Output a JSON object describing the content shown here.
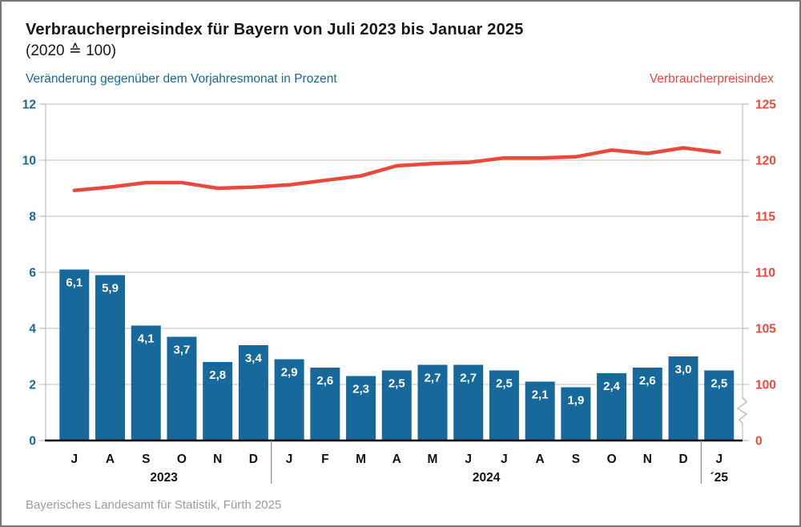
{
  "header": {
    "title": "Verbraucherpreisindex für Bayern von Juli 2023 bis Januar 2025",
    "subtitle": "(2020 ≙ 100)"
  },
  "footer": {
    "source": "Bayerisches Landesamt für Statistik, Fürth 2025"
  },
  "colors": {
    "bar_blue": "#17699c",
    "line_red": "#e8493c",
    "gridline_gray": "#cbcbcb",
    "axis_gray": "#c2c2c2",
    "separator_gray": "#8c8c8c",
    "x_axis_black": "#000000",
    "bar_label_white": "#ffffff",
    "footer_gray": "#9c9c9c"
  },
  "chart_data": {
    "type": "bar+line dual-axis",
    "title": "Verbraucherpreisindex für Bayern von Juli 2023 bis Januar 2025",
    "subtitle": "(2020 ≙ 100)",
    "categories": [
      "J",
      "A",
      "S",
      "O",
      "N",
      "D",
      "J",
      "F",
      "M",
      "A",
      "M",
      "J",
      "J",
      "A",
      "S",
      "O",
      "N",
      "D",
      "J"
    ],
    "year_groups": [
      {
        "label": "2023",
        "start": 0,
        "end": 5
      },
      {
        "label": "2024",
        "start": 6,
        "end": 17
      },
      {
        "label": "´25",
        "start": 18,
        "end": 18
      }
    ],
    "left_axis": {
      "label": "Veränderung gegenüber dem Vorjahresmonat in Prozent",
      "ticks": [
        12,
        10,
        8,
        6,
        4,
        2,
        0
      ],
      "range": [
        0,
        12
      ],
      "grid": true
    },
    "right_axis": {
      "label": "Verbraucherpreisindex",
      "ticks": [
        125,
        120,
        115,
        110,
        105,
        100,
        0
      ],
      "broken_below": 100
    },
    "series": [
      {
        "name": "Veränderung gegenüber dem Vorjahresmonat in Prozent",
        "type": "bar",
        "axis": "left",
        "color": "#17699c",
        "values": [
          6.1,
          5.9,
          4.1,
          3.7,
          2.8,
          3.4,
          2.9,
          2.6,
          2.3,
          2.5,
          2.7,
          2.7,
          2.5,
          2.1,
          1.9,
          2.4,
          2.6,
          3.0,
          2.5
        ],
        "labels": [
          "6,1",
          "5,9",
          "4,1",
          "3,7",
          "2,8",
          "3,4",
          "2,9",
          "2,6",
          "2,3",
          "2,5",
          "2,7",
          "2,7",
          "2,5",
          "2,1",
          "1,9",
          "2,4",
          "2,6",
          "3,0",
          "2,5"
        ]
      },
      {
        "name": "Verbraucherpreisindex",
        "type": "line",
        "axis": "right",
        "color": "#e8493c",
        "values": [
          117.3,
          117.6,
          118.0,
          118.0,
          117.5,
          117.6,
          117.8,
          118.2,
          118.6,
          119.5,
          119.7,
          119.8,
          120.2,
          120.2,
          120.3,
          120.9,
          120.6,
          121.1,
          120.7
        ]
      }
    ]
  }
}
